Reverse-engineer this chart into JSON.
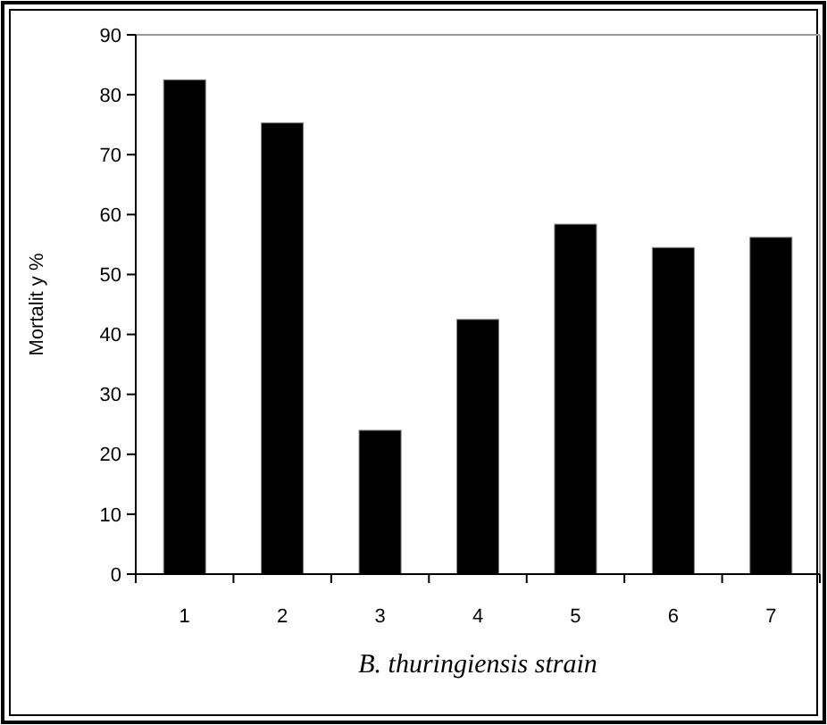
{
  "chart_data": {
    "type": "bar",
    "xlabel": "B. thuringiensis strain",
    "ylabel": "Mortalit y %",
    "categories": [
      "1",
      "2",
      "3",
      "4",
      "5",
      "6",
      "7"
    ],
    "values": [
      82.5,
      75.3,
      24,
      42.5,
      58.4,
      54.5,
      56.2
    ],
    "color": "#000000",
    "ylim": [
      0,
      90
    ],
    "yticks": [
      0,
      10,
      20,
      30,
      40,
      50,
      60,
      70,
      80,
      90
    ],
    "grid": false
  }
}
